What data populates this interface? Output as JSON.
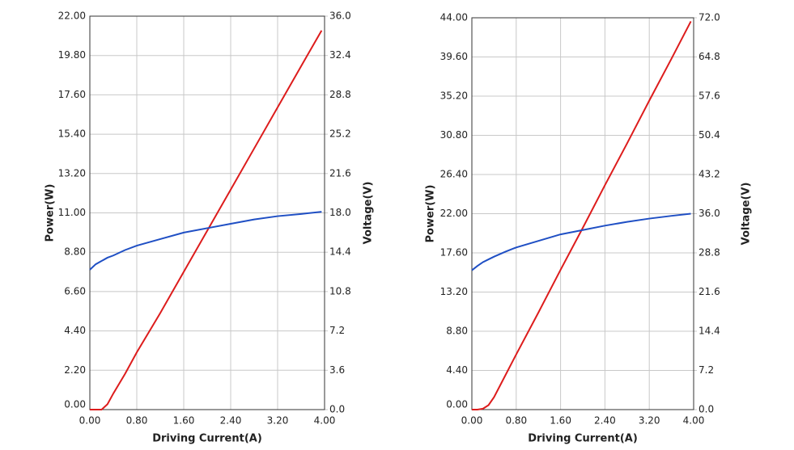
{
  "chart_data": [
    {
      "type": "line",
      "x_label": "Driving Current(A)",
      "y_label": "Power(W)",
      "y2_label": "Voltage(V)",
      "x": [
        0,
        0.1,
        0.2,
        0.3,
        0.4,
        0.6,
        0.8,
        1.2,
        1.6,
        2.0,
        2.4,
        2.8,
        3.2,
        3.6,
        3.95
      ],
      "series": [
        {
          "color": "#dd1c1c",
          "values": [
            0,
            0,
            0,
            0.3,
            0.9,
            2.0,
            3.2,
            5.4,
            7.7,
            10.0,
            12.3,
            14.6,
            16.9,
            19.2,
            21.2
          ]
        },
        {
          "color": "#1f4fc4",
          "axis": "y2",
          "values": [
            12.8,
            13.3,
            13.6,
            13.9,
            14.1,
            14.6,
            15.0,
            15.6,
            16.2,
            16.6,
            17.0,
            17.4,
            17.7,
            17.9,
            18.1
          ]
        }
      ],
      "xlim": [
        0,
        4
      ],
      "ylim": [
        0,
        22
      ],
      "y2lim": [
        0,
        36
      ],
      "xticks": [
        {
          "value": 0,
          "label": "0.00"
        },
        {
          "value": 0.8,
          "label": "0.80"
        },
        {
          "value": 1.6,
          "label": "1.60"
        },
        {
          "value": 2.4,
          "label": "2.40"
        },
        {
          "value": 3.2,
          "label": "3.20"
        },
        {
          "value": 4,
          "label": "4.00"
        }
      ],
      "yticks": [
        {
          "value": 0,
          "label": "0.00"
        },
        {
          "value": 2.2,
          "label": "2.20"
        },
        {
          "value": 4.4,
          "label": "4.40"
        },
        {
          "value": 6.6,
          "label": "6.60"
        },
        {
          "value": 8.8,
          "label": "8.80"
        },
        {
          "value": 11,
          "label": "11.00"
        },
        {
          "value": 13.2,
          "label": "13.20"
        },
        {
          "value": 15.4,
          "label": "15.40"
        },
        {
          "value": 17.6,
          "label": "17.60"
        },
        {
          "value": 19.8,
          "label": "19.80"
        },
        {
          "value": 22,
          "label": "22.00"
        }
      ],
      "y2ticks": [
        {
          "value": 0,
          "label": "0.0"
        },
        3.6,
        7.2,
        10.8,
        14.4,
        {
          "value": 18,
          "label": "18.0"
        },
        21.6,
        25.2,
        28.8,
        32.4,
        {
          "value": 36,
          "label": "36.0"
        }
      ],
      "grid": true
    },
    {
      "type": "line",
      "x_label": "Driving Current(A)",
      "y_label": "Power(W)",
      "y2_label": "Voltage(V)",
      "x": [
        0,
        0.1,
        0.2,
        0.3,
        0.4,
        0.6,
        0.8,
        1.2,
        1.6,
        2.0,
        2.4,
        2.8,
        3.2,
        3.6,
        3.95
      ],
      "series": [
        {
          "color": "#dd1c1c",
          "values": [
            0,
            0,
            0.1,
            0.5,
            1.4,
            3.8,
            6.2,
            10.9,
            15.7,
            20.4,
            25.2,
            29.9,
            34.7,
            39.4,
            43.6
          ]
        },
        {
          "color": "#1f4fc4",
          "axis": "y2",
          "values": [
            25.6,
            26.4,
            27.1,
            27.6,
            28.1,
            29.0,
            29.8,
            31.0,
            32.2,
            33.0,
            33.8,
            34.5,
            35.1,
            35.6,
            36.0
          ]
        }
      ],
      "xlim": [
        0,
        4
      ],
      "ylim": [
        0,
        44
      ],
      "y2lim": [
        0,
        72
      ],
      "xticks": [
        {
          "value": 0,
          "label": "0.00"
        },
        {
          "value": 0.8,
          "label": "0.80"
        },
        {
          "value": 1.6,
          "label": "1.60"
        },
        {
          "value": 2.4,
          "label": "2.40"
        },
        {
          "value": 3.2,
          "label": "3.20"
        },
        {
          "value": 4,
          "label": "4.00"
        }
      ],
      "yticks": [
        {
          "value": 0,
          "label": "0.00"
        },
        {
          "value": 4.4,
          "label": "4.40"
        },
        {
          "value": 8.8,
          "label": "8.80"
        },
        {
          "value": 13.2,
          "label": "13.20"
        },
        {
          "value": 17.6,
          "label": "17.60"
        },
        {
          "value": 22,
          "label": "22.00"
        },
        {
          "value": 26.4,
          "label": "26.40"
        },
        {
          "value": 30.8,
          "label": "30.80"
        },
        {
          "value": 35.2,
          "label": "35.20"
        },
        {
          "value": 39.6,
          "label": "39.60"
        },
        {
          "value": 44,
          "label": "44.00"
        }
      ],
      "y2ticks": [
        {
          "value": 0,
          "label": "0.0"
        },
        7.2,
        14.4,
        21.6,
        28.8,
        {
          "value": 36,
          "label": "36.0"
        },
        43.2,
        50.4,
        57.6,
        64.8,
        {
          "value": 72,
          "label": "72.0"
        }
      ],
      "grid": true
    }
  ]
}
